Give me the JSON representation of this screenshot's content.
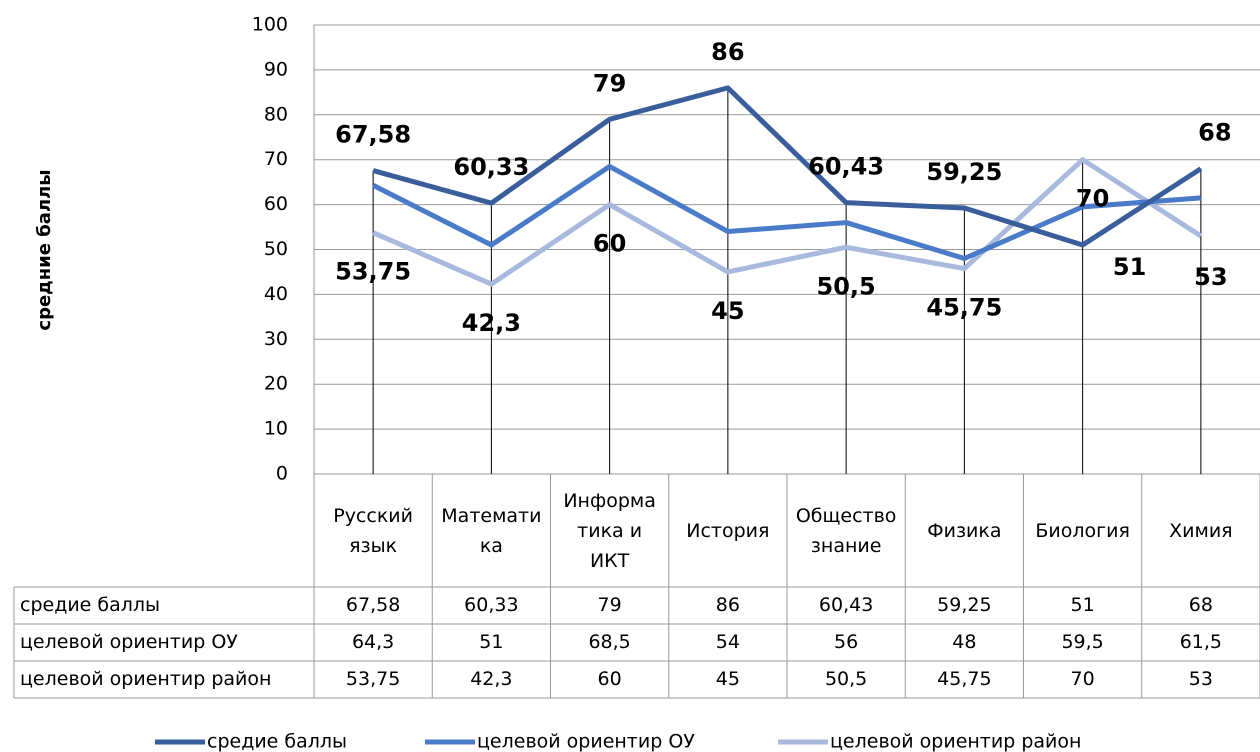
{
  "chart_data": {
    "type": "line",
    "y_label": "средние баллы",
    "categories": [
      "Русский язык",
      "Математика",
      "Информатика и ИКТ",
      "История",
      "Обществознание",
      "Физика",
      "Биология",
      "Химия"
    ],
    "series": [
      {
        "name": "средие баллы",
        "color": "#3a5d9c",
        "values": [
          67.58,
          60.33,
          79,
          86,
          60.43,
          59.25,
          51,
          68
        ],
        "value_labels": [
          "67,58",
          "60,33",
          "79",
          "86",
          "60,43",
          "59,25",
          "51",
          "68"
        ]
      },
      {
        "name": "целевой ориентир ОУ",
        "color": "#4a7bc8",
        "values": [
          64.3,
          51,
          68.5,
          54,
          56,
          48,
          59.5,
          61.5
        ],
        "value_labels": [
          "64,3",
          "51",
          "68,5",
          "54",
          "56",
          "48",
          "59,5",
          "61,5"
        ]
      },
      {
        "name": "целевой ориентир район",
        "color": "#a9b9de",
        "values": [
          53.75,
          42.3,
          60,
          45,
          50.5,
          45.75,
          70,
          53
        ],
        "value_labels": [
          "53,75",
          "42,3",
          "60",
          "45",
          "50,5",
          "45,75",
          "70",
          "53"
        ]
      }
    ],
    "ylim": [
      0,
      100
    ],
    "yticks": [
      0,
      10,
      20,
      30,
      40,
      50,
      60,
      70,
      80,
      90,
      100
    ],
    "grid": true
  }
}
